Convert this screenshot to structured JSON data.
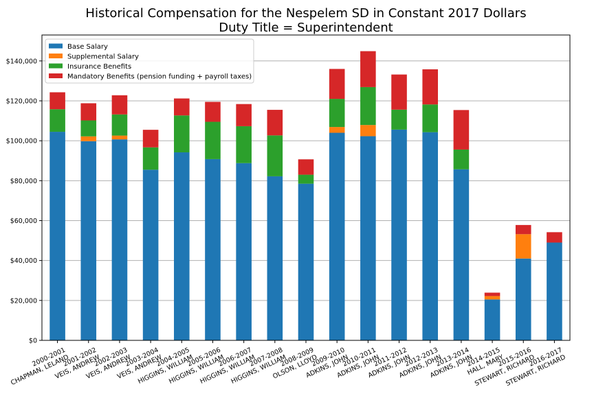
{
  "chart_data": {
    "type": "bar",
    "stacked": true,
    "title": "Historical Compensation for the Nespelem SD in Constant 2017 Dollars",
    "subtitle": "Duty Title = Superintendent",
    "xlabel": "",
    "ylabel": "",
    "ylim": [
      0,
      153000
    ],
    "yticks": [
      0,
      20000,
      40000,
      60000,
      80000,
      100000,
      120000,
      140000
    ],
    "ytick_labels": [
      "$0",
      "$20,000",
      "$40,000",
      "$60,000",
      "$80,000",
      "$100,000",
      "$120,000",
      "$140,000"
    ],
    "grid": "horizontal",
    "legend_position": "top-left",
    "categories": [
      [
        "2000-2001",
        "CHAPMAN, LELAND"
      ],
      [
        "2001-2002",
        "VEIS, ANDREW"
      ],
      [
        "2002-2003",
        "VEIS, ANDREW"
      ],
      [
        "2003-2004",
        "VEIS, ANDREW"
      ],
      [
        "2004-2005",
        "HIGGINS, WILLIAM"
      ],
      [
        "2005-2006",
        "HIGGINS, WILLIAM"
      ],
      [
        "2006-2007",
        "HIGGINS, WILLIAM"
      ],
      [
        "2007-2008",
        "HIGGINS, WILLIAM"
      ],
      [
        "2008-2009",
        "OLSON, LLOYD"
      ],
      [
        "2009-2010",
        "ADKINS, JOHN"
      ],
      [
        "2010-2011",
        "ADKINS, JOHN"
      ],
      [
        "2011-2012",
        "ADKINS, JOHN"
      ],
      [
        "2012-2013",
        "ADKINS, JOHN"
      ],
      [
        "2013-2014",
        "ADKINS, JOHN"
      ],
      [
        "2014-2015",
        "HALL, MARY"
      ],
      [
        "2015-2016",
        "STEWART, RICHARD"
      ],
      [
        "2016-2017",
        "STEWART, RICHARD"
      ]
    ],
    "series": [
      {
        "name": "Base Salary",
        "color": "#1f77b4",
        "values": [
          104500,
          99800,
          100700,
          85500,
          94200,
          90800,
          88800,
          82200,
          78500,
          104000,
          102300,
          105600,
          104300,
          85700,
          20500,
          41000,
          49000
        ]
      },
      {
        "name": "Supplemental Salary",
        "color": "#ff7f0e",
        "values": [
          0,
          2400,
          1900,
          0,
          0,
          0,
          0,
          0,
          0,
          2900,
          5600,
          0,
          0,
          0,
          1700,
          12200,
          0
        ]
      },
      {
        "name": "Insurance Benefits",
        "color": "#2ca02c",
        "values": [
          11300,
          8000,
          10600,
          11200,
          18500,
          18700,
          18500,
          20500,
          4500,
          14100,
          19000,
          10000,
          13900,
          9900,
          0,
          0,
          0
        ]
      },
      {
        "name": "Mandatory Benefits (pension funding + payroll taxes)",
        "color": "#d62728",
        "values": [
          8500,
          8600,
          9600,
          8800,
          8500,
          10000,
          11100,
          12800,
          7700,
          15000,
          18000,
          17600,
          17600,
          19800,
          1700,
          4600,
          5200
        ]
      }
    ]
  }
}
